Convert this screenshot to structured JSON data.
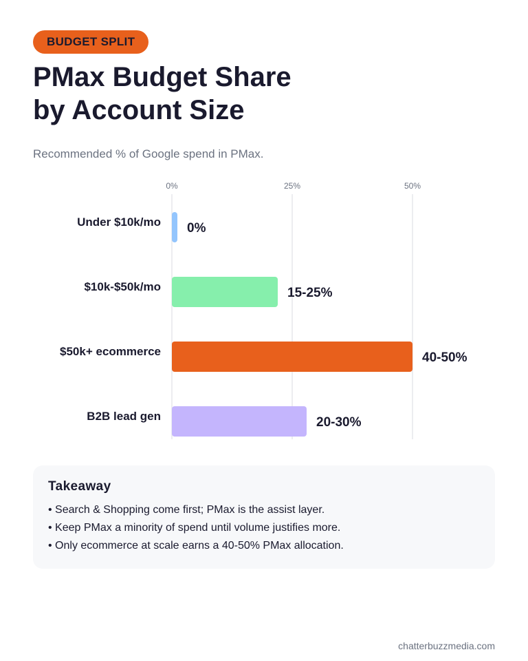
{
  "badge": {
    "label": "BUDGET SPLIT",
    "color": "#e8601c"
  },
  "title_line1": "PMax Budget Share",
  "title_line2": "by Account Size",
  "subtitle": "Recommended % of Google spend in PMax.",
  "chart_data": {
    "type": "bar",
    "orientation": "horizontal",
    "xlim": [
      0,
      50
    ],
    "ticks": [
      {
        "value": 0,
        "label": "0%"
      },
      {
        "value": 25,
        "label": "25%"
      },
      {
        "value": 50,
        "label": "50%"
      }
    ],
    "grid": true,
    "categories": [
      "Under $10k/mo",
      "$10k-$50k/mo",
      "$50k+ ecommerce",
      "B2B lead gen"
    ],
    "values": [
      0,
      22,
      50,
      28
    ],
    "value_labels": [
      "0%",
      "15-25%",
      "40-50%",
      "20-30%"
    ],
    "colors": [
      "#93c5fd",
      "#86efac",
      "#e8601c",
      "#c4b5fd"
    ]
  },
  "takeaway": {
    "heading": "Takeaway",
    "items": [
      "Search & Shopping come first; PMax is the assist layer.",
      "Keep PMax a minority of spend until volume justifies more.",
      "Only ecommerce at scale earns a 40-50% PMax allocation."
    ]
  },
  "footer": "chatterbuzzmedia.com"
}
